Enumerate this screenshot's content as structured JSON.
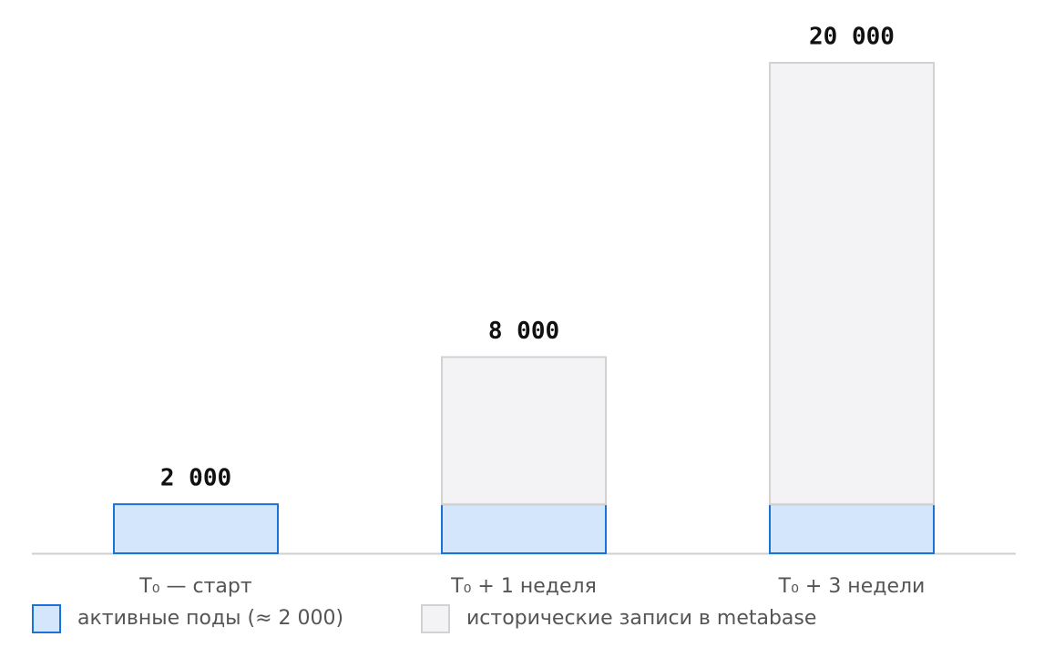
{
  "chart_data": {
    "type": "stacked-bar",
    "categories": [
      "T₀ — старт",
      "T₀ + 1 неделя",
      "T₀ + 3 недели"
    ],
    "series": [
      {
        "name": "активные поды (≈ 2 000)",
        "color": "#d4e6fc",
        "border": "#1a74d8",
        "values": [
          2000,
          2000,
          2000
        ]
      },
      {
        "name": "исторические записи в metabase",
        "color": "#f3f3f5",
        "border": "#d2d2d4",
        "values": [
          0,
          6000,
          18000
        ]
      }
    ],
    "totals": [
      2000,
      8000,
      20000
    ],
    "total_labels": [
      "2 000",
      "8 000",
      "20 000"
    ],
    "ylim": [
      0,
      20000
    ]
  }
}
